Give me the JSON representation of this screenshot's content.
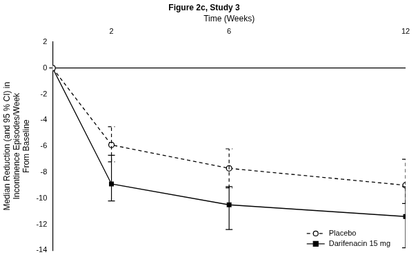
{
  "chart_data": {
    "type": "line",
    "title": "Figure 2c, Study 3",
    "x_label": "Time (Weeks)",
    "y_label": [
      "Median Reduction (and 95 % CI) in",
      "Incontinence Episodes/Week",
      "From Baseline"
    ],
    "x": [
      0,
      2,
      6,
      12
    ],
    "xlim": [
      0,
      12
    ],
    "xticks": [
      2,
      6,
      12
    ],
    "ylim": [
      -14,
      2
    ],
    "yticks": [
      -14,
      -12,
      -10,
      -8,
      -6,
      -4,
      -2,
      0,
      2
    ],
    "grid": false,
    "legend": "lower right",
    "series": [
      {
        "name": "Placebo",
        "color": "#000000",
        "marker": "circle_open",
        "line_style": "dashed",
        "values": [
          0,
          -5.9,
          -7.7,
          -9.0
        ],
        "ci_low": [
          null,
          -7.2,
          -9.2,
          -10.4
        ],
        "ci_high": [
          null,
          -4.5,
          -6.2,
          -7.0
        ]
      },
      {
        "name": "Darifenacin 15 mg",
        "color": "#000000",
        "marker": "square",
        "line_style": "solid",
        "values": [
          0,
          -8.9,
          -10.5,
          -11.4
        ],
        "ci_low": [
          null,
          -10.2,
          -12.4,
          -13.8
        ],
        "ci_high": [
          null,
          -6.7,
          -9.1,
          -9.1
        ]
      }
    ]
  }
}
